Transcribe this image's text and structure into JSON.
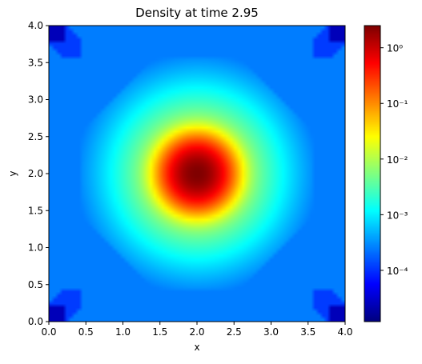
{
  "chart_data": {
    "type": "heatmap",
    "title": "Density at time 2.95",
    "xlabel": "x",
    "ylabel": "y",
    "xlim": [
      0.0,
      4.0
    ],
    "ylim": [
      0.0,
      4.0
    ],
    "x_ticks": [
      "0.0",
      "0.5",
      "1.0",
      "1.5",
      "2.0",
      "2.5",
      "3.0",
      "3.5",
      "4.0"
    ],
    "y_ticks": [
      "0.0",
      "0.5",
      "1.0",
      "1.5",
      "2.0",
      "2.5",
      "3.0",
      "3.5",
      "4.0"
    ],
    "colormap": "jet",
    "color_scale": "log",
    "colorbar_range": [
      1.2e-05,
      2.5
    ],
    "colorbar_ticks": [
      {
        "value": 1,
        "label": "10⁰"
      },
      {
        "value": 0.1,
        "label": "10⁻¹"
      },
      {
        "value": 0.01,
        "label": "10⁻²"
      },
      {
        "value": 0.001,
        "label": "10⁻³"
      },
      {
        "value": 0.0001,
        "label": "10⁻⁴"
      }
    ],
    "grid": false,
    "field_summary": {
      "peak_center": [
        2.0,
        2.0
      ],
      "peak_value": 2.5,
      "background_value": 0.0001,
      "corner_minimum_value": 1.5e-05,
      "boundary_band_value": 0.00025
    }
  }
}
